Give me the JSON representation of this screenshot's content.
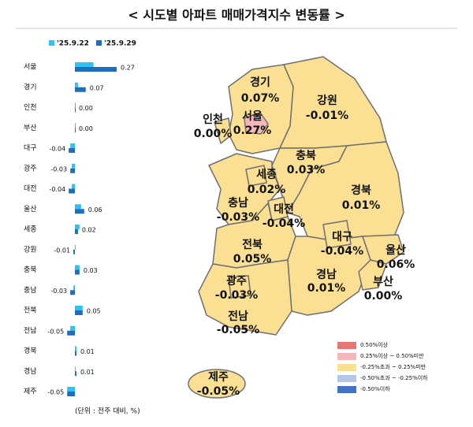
{
  "chart_data": [
    {
      "type": "hbar",
      "title": "< 시도별 아파트 매매가격지수 변동률 >",
      "note": "(단위 : 전주 대비, %)",
      "categories": [
        "서울",
        "경기",
        "인천",
        "부산",
        "대구",
        "광주",
        "대전",
        "울산",
        "세종",
        "강원",
        "충북",
        "충남",
        "전북",
        "전남",
        "경북",
        "경남",
        "제주"
      ],
      "series": [
        {
          "name": "'25.9.22",
          "color": "#2ec3f2",
          "values": [
            0.12,
            0.02,
            0,
            0,
            -0.03,
            -0.02,
            -0.02,
            0.04,
            0.03,
            0,
            0.03,
            -0.01,
            0.05,
            -0.03,
            0.01,
            0,
            -0.05
          ]
        },
        {
          "name": "'25.9.29",
          "color": "#1f6dbf",
          "values": [
            0.27,
            0.07,
            0,
            0,
            -0.04,
            -0.03,
            -0.04,
            0.06,
            0.02,
            -0.01,
            0.03,
            -0.03,
            0.05,
            -0.05,
            0.01,
            0.01,
            -0.05
          ],
          "value_labels": [
            "0.27",
            "0.07",
            "0.00",
            "0.00",
            "-0.04",
            "-0.03",
            "-0.04",
            "0.06",
            "0.02",
            "-0.01",
            "0.03",
            "-0.03",
            "0.05",
            "-0.05",
            "0.01",
            "0.01",
            "-0.05"
          ]
        }
      ]
    },
    {
      "type": "map",
      "regions": [
        {
          "name": "서울",
          "value_label": "0.27%",
          "color": "#f4b8bc"
        },
        {
          "name": "경기",
          "value_label": "0.07%",
          "color": "#fbe094"
        },
        {
          "name": "인천",
          "value_label": "0.00%",
          "color": "#fbe094"
        },
        {
          "name": "강원",
          "value_label": "-0.01%",
          "color": "#fbe094"
        },
        {
          "name": "충북",
          "value_label": "0.03%",
          "color": "#fbe094"
        },
        {
          "name": "세종",
          "value_label": "0.02%",
          "color": "#fbe094"
        },
        {
          "name": "충남",
          "value_label": "-0.03%",
          "color": "#fbe094"
        },
        {
          "name": "대전",
          "value_label": "-0.04%",
          "color": "#fbe094"
        },
        {
          "name": "경북",
          "value_label": "0.01%",
          "color": "#fbe094"
        },
        {
          "name": "대구",
          "value_label": "-0.04%",
          "color": "#fbe094"
        },
        {
          "name": "전북",
          "value_label": "0.05%",
          "color": "#fbe094"
        },
        {
          "name": "울산",
          "value_label": "0.06%",
          "color": "#fbe094"
        },
        {
          "name": "경남",
          "value_label": "0.01%",
          "color": "#fbe094"
        },
        {
          "name": "부산",
          "value_label": "0.00%",
          "color": "#fbe094"
        },
        {
          "name": "광주",
          "value_label": "-0.03%",
          "color": "#fbe094"
        },
        {
          "name": "전남",
          "value_label": "-0.05%",
          "color": "#fbe094"
        },
        {
          "name": "제주",
          "value_label": "-0.05%",
          "color": "#fbe094"
        }
      ],
      "legend": [
        {
          "label": "0.50%이상",
          "color": "#e87577"
        },
        {
          "label": "0.25%이상 ~ 0.50%미만",
          "color": "#f4b8bc"
        },
        {
          "label": "-0.25%초과 ~ 0.25%미만",
          "color": "#fbe094"
        },
        {
          "label": "-0.50%초과 ~ -0.25%이하",
          "color": "#b4c7e7"
        },
        {
          "label": "-0.50%이하",
          "color": "#4472c4"
        }
      ]
    }
  ]
}
